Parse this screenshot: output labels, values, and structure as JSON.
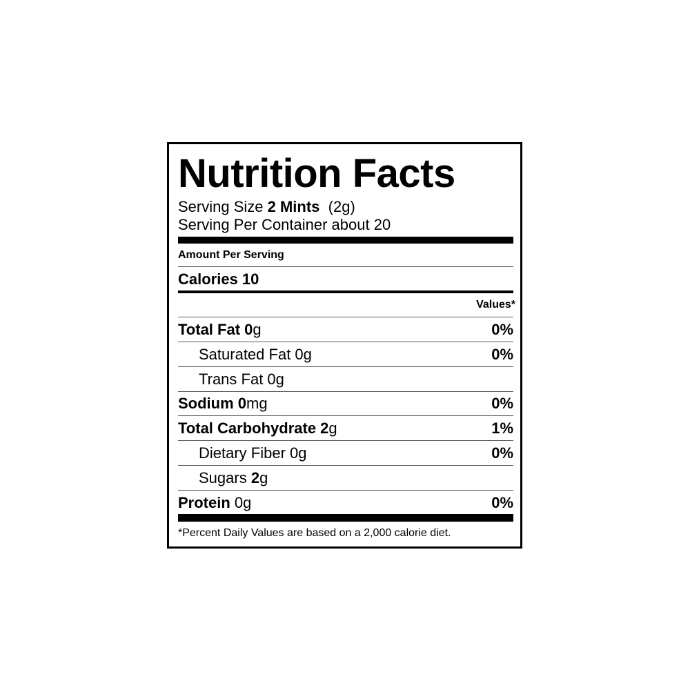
{
  "title": "Nutrition Facts",
  "serving_size": [
    {
      "text": "Serving Size ",
      "bold": false
    },
    {
      "text": "2 Mints",
      "bold": true
    },
    {
      "text": "  (2g)",
      "bold": false
    }
  ],
  "servings_per_container": "Serving Per Container about 20",
  "amount_per_serving": "Amount Per Serving",
  "calories": "Calories 10",
  "dv_header": "Values*",
  "rows": [
    {
      "parts": [
        {
          "text": "Total Fat 0",
          "bold": true
        },
        {
          "text": "g",
          "bold": false
        }
      ],
      "dv": "0%",
      "indent": false
    },
    {
      "parts": [
        {
          "text": "Saturated Fat 0g",
          "bold": false
        }
      ],
      "dv": "0%",
      "indent": true
    },
    {
      "parts": [
        {
          "text": "Trans Fat 0g",
          "bold": false
        }
      ],
      "indent": true
    },
    {
      "parts": [
        {
          "text": "Sodium 0",
          "bold": true
        },
        {
          "text": "mg",
          "bold": false
        }
      ],
      "dv": "0%",
      "indent": false
    },
    {
      "parts": [
        {
          "text": "Total Carbohydrate 2",
          "bold": true
        },
        {
          "text": "g",
          "bold": false
        }
      ],
      "dv": "1%",
      "indent": false
    },
    {
      "parts": [
        {
          "text": "Dietary Fiber 0g",
          "bold": false
        }
      ],
      "dv": "0%",
      "indent": true
    },
    {
      "parts": [
        {
          "text": "Sugars ",
          "bold": false
        },
        {
          "text": "2",
          "bold": true
        },
        {
          "text": "g",
          "bold": false
        }
      ],
      "indent": true
    },
    {
      "parts": [
        {
          "text": "Protein",
          "bold": true
        },
        {
          "text": " 0g",
          "bold": false
        }
      ],
      "dv": "0%",
      "indent": false
    }
  ],
  "footnote": "*Percent Daily Values are based on a 2,000 calorie diet."
}
